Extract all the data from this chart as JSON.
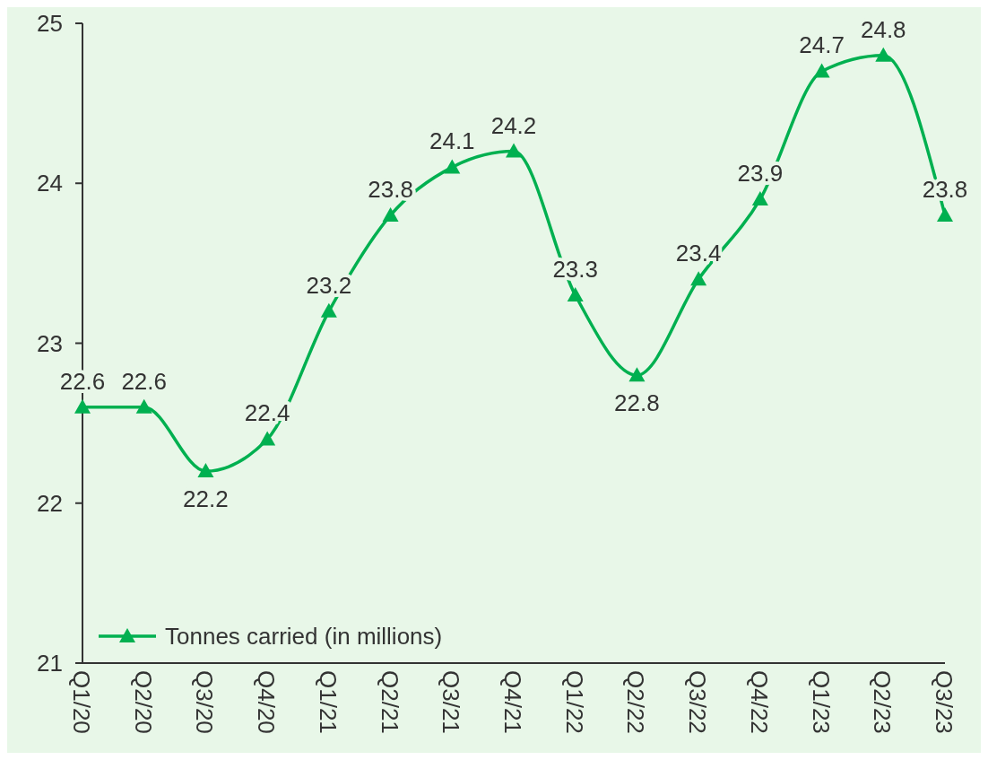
{
  "chart_data": {
    "type": "line",
    "categories": [
      "Q1/20",
      "Q2/20",
      "Q3/20",
      "Q4/20",
      "Q1/21",
      "Q2/21",
      "Q3/21",
      "Q4/21",
      "Q1/22",
      "Q2/22",
      "Q3/22",
      "Q4/22",
      "Q1/23",
      "Q2/23",
      "Q3/23"
    ],
    "series": [
      {
        "name": "Tonnes carried (in millions)",
        "color": "#00b050",
        "values": [
          22.6,
          22.6,
          22.2,
          22.4,
          23.2,
          23.8,
          24.1,
          24.2,
          23.3,
          22.8,
          23.4,
          23.9,
          24.7,
          24.8,
          23.8
        ]
      }
    ],
    "ylim": [
      21,
      25
    ],
    "yticks": [
      21,
      22,
      23,
      24,
      25
    ],
    "grid": false,
    "legend": "bottom left",
    "marker": "triangle",
    "line_style": "solid",
    "data_labels": true
  }
}
